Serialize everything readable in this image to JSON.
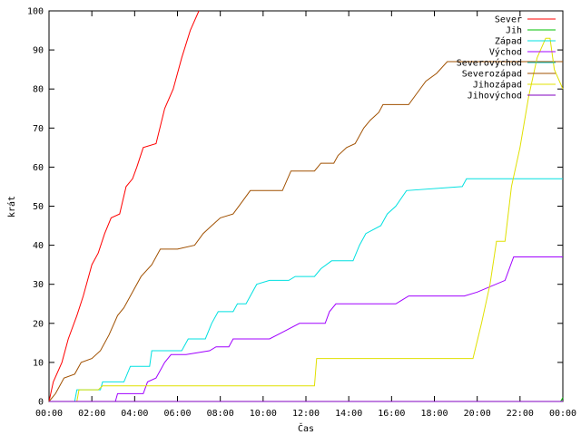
{
  "chart_data": {
    "type": "line",
    "title": "",
    "xlabel": "Čas",
    "ylabel": "krát",
    "xlim": [
      0,
      24
    ],
    "ylim": [
      0,
      100
    ],
    "x_ticks": [
      "00:00",
      "02:00",
      "04:00",
      "06:00",
      "08:00",
      "10:00",
      "12:00",
      "14:00",
      "16:00",
      "18:00",
      "20:00",
      "22:00",
      "00:00"
    ],
    "y_ticks": [
      "0",
      "10",
      "20",
      "30",
      "40",
      "50",
      "60",
      "70",
      "80",
      "90",
      "100"
    ],
    "legend_position": "top-right",
    "series": [
      {
        "name": "Sever",
        "color": "#ff0000",
        "points": [
          [
            0.0,
            0
          ],
          [
            0.2,
            5
          ],
          [
            0.6,
            10
          ],
          [
            0.9,
            16
          ],
          [
            1.3,
            22
          ],
          [
            1.6,
            27
          ],
          [
            2.0,
            35
          ],
          [
            2.3,
            38
          ],
          [
            2.6,
            43
          ],
          [
            2.9,
            47
          ],
          [
            3.3,
            48
          ],
          [
            3.6,
            55
          ],
          [
            3.9,
            57
          ],
          [
            4.1,
            60
          ],
          [
            4.4,
            65
          ],
          [
            5.0,
            66
          ],
          [
            5.4,
            75
          ],
          [
            5.8,
            80
          ],
          [
            6.2,
            88
          ],
          [
            6.6,
            95
          ],
          [
            7.0,
            100
          ]
        ]
      },
      {
        "name": "Jih",
        "color": "#00c000",
        "points": [
          [
            0.0,
            0
          ],
          [
            23.9,
            0
          ],
          [
            24.0,
            1
          ]
        ]
      },
      {
        "name": "Západ",
        "color": "#00e0e0",
        "points": [
          [
            0.0,
            0
          ],
          [
            1.2,
            0
          ],
          [
            1.3,
            3
          ],
          [
            2.4,
            3
          ],
          [
            2.5,
            5
          ],
          [
            3.5,
            5
          ],
          [
            3.8,
            9
          ],
          [
            4.7,
            9
          ],
          [
            4.8,
            13
          ],
          [
            6.2,
            13
          ],
          [
            6.5,
            16
          ],
          [
            7.3,
            16
          ],
          [
            7.6,
            20
          ],
          [
            7.9,
            23
          ],
          [
            8.6,
            23
          ],
          [
            8.8,
            25
          ],
          [
            9.2,
            25
          ],
          [
            9.4,
            27
          ],
          [
            9.7,
            30
          ],
          [
            10.3,
            31
          ],
          [
            11.2,
            31
          ],
          [
            11.5,
            32
          ],
          [
            12.4,
            32
          ],
          [
            12.7,
            34
          ],
          [
            13.2,
            36
          ],
          [
            14.2,
            36
          ],
          [
            14.5,
            40
          ],
          [
            14.8,
            43
          ],
          [
            15.5,
            45
          ],
          [
            15.8,
            48
          ],
          [
            16.2,
            50
          ],
          [
            16.7,
            54
          ],
          [
            19.3,
            55
          ],
          [
            19.5,
            57
          ],
          [
            24.0,
            57
          ]
        ]
      },
      {
        "name": "Východ",
        "color": "#a000ff",
        "points": [
          [
            0.0,
            0
          ],
          [
            3.1,
            0
          ],
          [
            3.2,
            2
          ],
          [
            4.4,
            2
          ],
          [
            4.6,
            5
          ],
          [
            5.0,
            6
          ],
          [
            5.4,
            10
          ],
          [
            5.7,
            12
          ],
          [
            6.4,
            12
          ],
          [
            7.5,
            13
          ],
          [
            7.8,
            14
          ],
          [
            8.4,
            14
          ],
          [
            8.6,
            16
          ],
          [
            10.3,
            16
          ],
          [
            11.0,
            18
          ],
          [
            11.7,
            20
          ],
          [
            12.9,
            20
          ],
          [
            13.1,
            23
          ],
          [
            13.4,
            25
          ],
          [
            16.2,
            25
          ],
          [
            16.5,
            26
          ],
          [
            16.8,
            27
          ],
          [
            19.4,
            27
          ],
          [
            20.0,
            28
          ],
          [
            21.3,
            31
          ],
          [
            21.7,
            37
          ],
          [
            24.0,
            37
          ]
        ]
      },
      {
        "name": "Severovýchod",
        "color": "#00c0c0",
        "points": [
          [
            0.0,
            0
          ],
          [
            24.0,
            0
          ]
        ]
      },
      {
        "name": "Severozápad",
        "color": "#a05000",
        "points": [
          [
            0.0,
            0
          ],
          [
            0.3,
            2
          ],
          [
            0.5,
            4
          ],
          [
            0.7,
            6
          ],
          [
            1.2,
            7
          ],
          [
            1.5,
            10
          ],
          [
            2.0,
            11
          ],
          [
            2.4,
            13
          ],
          [
            2.8,
            17
          ],
          [
            3.2,
            22
          ],
          [
            3.5,
            24
          ],
          [
            3.9,
            28
          ],
          [
            4.3,
            32
          ],
          [
            4.8,
            35
          ],
          [
            5.2,
            39
          ],
          [
            6.0,
            39
          ],
          [
            6.8,
            40
          ],
          [
            7.2,
            43
          ],
          [
            7.6,
            45
          ],
          [
            8.0,
            47
          ],
          [
            8.6,
            48
          ],
          [
            9.0,
            51
          ],
          [
            9.4,
            54
          ],
          [
            10.9,
            54
          ],
          [
            11.3,
            59
          ],
          [
            12.4,
            59
          ],
          [
            12.7,
            61
          ],
          [
            13.3,
            61
          ],
          [
            13.5,
            63
          ],
          [
            13.9,
            65
          ],
          [
            14.3,
            66
          ],
          [
            14.7,
            70
          ],
          [
            15.0,
            72
          ],
          [
            15.4,
            74
          ],
          [
            15.6,
            76
          ],
          [
            16.8,
            76
          ],
          [
            17.2,
            79
          ],
          [
            17.6,
            82
          ],
          [
            18.1,
            84
          ],
          [
            18.6,
            87
          ],
          [
            24.0,
            87
          ]
        ]
      },
      {
        "name": "Jihozápad",
        "color": "#e0e000",
        "points": [
          [
            0.0,
            0
          ],
          [
            1.3,
            0
          ],
          [
            1.4,
            3
          ],
          [
            2.3,
            3
          ],
          [
            2.5,
            4
          ],
          [
            12.4,
            4
          ],
          [
            12.5,
            11
          ],
          [
            19.8,
            11
          ],
          [
            20.2,
            20
          ],
          [
            20.6,
            30
          ],
          [
            20.9,
            41
          ],
          [
            21.3,
            41
          ],
          [
            21.6,
            55
          ],
          [
            22.0,
            65
          ],
          [
            22.4,
            78
          ],
          [
            22.8,
            88
          ],
          [
            23.2,
            93
          ],
          [
            23.4,
            93
          ],
          [
            23.6,
            85
          ],
          [
            24.0,
            80
          ]
        ]
      },
      {
        "name": "Jihovýchod",
        "color": "#8000c0",
        "points": [
          [
            0.0,
            0
          ],
          [
            24.0,
            0
          ]
        ]
      }
    ]
  }
}
